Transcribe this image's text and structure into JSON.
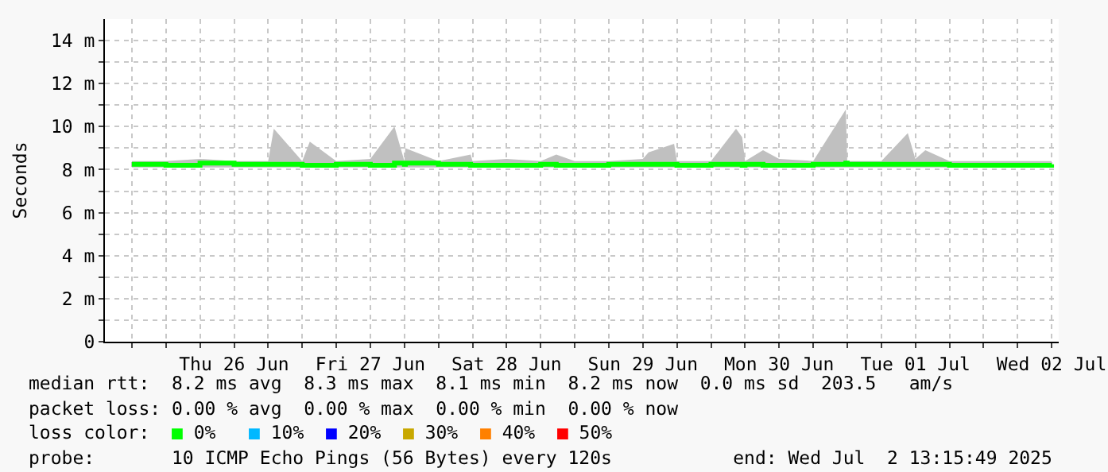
{
  "chart_data": {
    "type": "line",
    "ylabel": "Seconds",
    "x": [
      "2025-06-25T18:00",
      "2025-06-26T00:00",
      "2025-06-26T06:00",
      "2025-06-26T12:00",
      "2025-06-26T18:00",
      "2025-06-26T19:00",
      "2025-06-27T00:00",
      "2025-06-27T01:20",
      "2025-06-27T06:00",
      "2025-06-27T12:00",
      "2025-06-27T16:15",
      "2025-06-27T18:00",
      "2025-06-27T18:10",
      "2025-06-28T00:00",
      "2025-06-28T05:40",
      "2025-06-28T06:00",
      "2025-06-28T12:00",
      "2025-06-28T18:00",
      "2025-06-28T20:45",
      "2025-06-29T00:00",
      "2025-06-29T06:00",
      "2025-06-29T12:00",
      "2025-06-29T13:00",
      "2025-06-29T17:30",
      "2025-06-29T18:00",
      "2025-06-30T00:00",
      "2025-06-30T04:25",
      "2025-06-30T05:30",
      "2025-06-30T06:00",
      "2025-06-30T09:10",
      "2025-06-30T12:00",
      "2025-06-30T18:00",
      "2025-06-30T23:45",
      "2025-07-01T00:00",
      "2025-07-01T06:00",
      "2025-07-01T10:40",
      "2025-07-01T12:00",
      "2025-07-01T13:45",
      "2025-07-01T18:00",
      "2025-07-02T00:00",
      "2025-07-02T06:00",
      "2025-07-02T12:00"
    ],
    "series": [
      {
        "color": "#00ff00",
        "values": [
          8.25,
          8.2,
          8.3,
          8.25,
          8.25,
          8.25,
          8.2,
          8.2,
          8.25,
          8.2,
          8.3,
          8.25,
          8.3,
          8.25,
          8.2,
          8.2,
          8.2,
          8.25,
          8.2,
          8.2,
          8.25,
          8.25,
          8.25,
          8.25,
          8.2,
          8.25,
          8.25,
          8.2,
          8.25,
          8.2,
          8.2,
          8.25,
          8.3,
          8.25,
          8.25,
          8.25,
          8.25,
          8.25,
          8.2,
          8.2,
          8.2,
          8.25
        ],
        "lower": [
          8.1,
          8.1,
          8.1,
          8.1,
          8.1,
          8.1,
          8.1,
          8.1,
          8.1,
          8.1,
          8.1,
          8.1,
          8.1,
          8.1,
          8.1,
          8.1,
          8.1,
          8.1,
          8.1,
          8.1,
          8.1,
          8.1,
          8.1,
          8.1,
          8.1,
          8.1,
          8.1,
          8.1,
          8.1,
          8.1,
          8.1,
          8.1,
          8.1,
          8.1,
          8.1,
          8.1,
          8.1,
          8.1,
          8.1,
          8.1,
          8.1,
          8.1
        ],
        "upper": [
          8.4,
          8.4,
          8.5,
          8.4,
          8.4,
          9.9,
          8.4,
          9.3,
          8.4,
          8.5,
          10.0,
          8.4,
          9.0,
          8.4,
          8.7,
          8.4,
          8.5,
          8.4,
          8.7,
          8.4,
          8.4,
          8.5,
          8.8,
          9.2,
          8.4,
          8.4,
          9.9,
          9.5,
          8.4,
          8.9,
          8.5,
          8.4,
          10.8,
          8.4,
          8.4,
          9.7,
          8.5,
          8.9,
          8.4,
          8.4,
          8.4,
          8.4
        ]
      }
    ],
    "xlim": [
      "2025-06-25T13:15",
      "2025-07-02T13:15"
    ],
    "xticks": [
      {
        "value": "2025-06-25T18:00",
        "label": null
      },
      {
        "value": "2025-06-26T00:00",
        "label": null
      },
      {
        "value": "2025-06-26T06:00",
        "label": null
      },
      {
        "value": "2025-06-26T12:00",
        "label": "Thu 26 Jun"
      },
      {
        "value": "2025-06-26T18:00",
        "label": null
      },
      {
        "value": "2025-06-27T00:00",
        "label": null
      },
      {
        "value": "2025-06-27T06:00",
        "label": null
      },
      {
        "value": "2025-06-27T12:00",
        "label": "Fri 27 Jun"
      },
      {
        "value": "2025-06-27T18:00",
        "label": null
      },
      {
        "value": "2025-06-28T00:00",
        "label": null
      },
      {
        "value": "2025-06-28T06:00",
        "label": null
      },
      {
        "value": "2025-06-28T12:00",
        "label": "Sat 28 Jun"
      },
      {
        "value": "2025-06-28T18:00",
        "label": null
      },
      {
        "value": "2025-06-29T00:00",
        "label": null
      },
      {
        "value": "2025-06-29T06:00",
        "label": null
      },
      {
        "value": "2025-06-29T12:00",
        "label": "Sun 29 Jun"
      },
      {
        "value": "2025-06-29T18:00",
        "label": null
      },
      {
        "value": "2025-06-30T00:00",
        "label": null
      },
      {
        "value": "2025-06-30T06:00",
        "label": null
      },
      {
        "value": "2025-06-30T12:00",
        "label": "Mon 30 Jun"
      },
      {
        "value": "2025-06-30T18:00",
        "label": null
      },
      {
        "value": "2025-07-01T00:00",
        "label": null
      },
      {
        "value": "2025-07-01T06:00",
        "label": null
      },
      {
        "value": "2025-07-01T12:00",
        "label": "Tue 01 Jul"
      },
      {
        "value": "2025-07-01T18:00",
        "label": null
      },
      {
        "value": "2025-07-02T00:00",
        "label": null
      },
      {
        "value": "2025-07-02T06:00",
        "label": null
      },
      {
        "value": "2025-07-02T12:00",
        "label": "Wed 02 Jul"
      }
    ],
    "ylim": [
      0,
      15
    ],
    "yticks": [
      {
        "value": 0,
        "label": "0"
      },
      {
        "value": 1,
        "label": null
      },
      {
        "value": 2,
        "label": "2 m"
      },
      {
        "value": 3,
        "label": null
      },
      {
        "value": 4,
        "label": "4 m"
      },
      {
        "value": 5,
        "label": null
      },
      {
        "value": 6,
        "label": "6 m"
      },
      {
        "value": 7,
        "label": null
      },
      {
        "value": 8,
        "label": "8 m"
      },
      {
        "value": 9,
        "label": null
      },
      {
        "value": 10,
        "label": "10 m"
      },
      {
        "value": 11,
        "label": null
      },
      {
        "value": 12,
        "label": "12 m"
      },
      {
        "value": 13,
        "label": null
      },
      {
        "value": 14,
        "label": "14 m"
      }
    ],
    "grid": true,
    "line_style": "solid",
    "annotations": [
      "median rtt:  8.2 ms avg  8.3 ms max  8.1 ms min  8.2 ms now  0.0 ms sd  203.5   am/s",
      "packet loss: 0.00 % avg  0.00 % max  0.00 % min  0.00 % now",
      "loss color:  ■ 0%   ■ 10%  ■ 20%  ■ 30%  ■ 40%  ■ 50%",
      "probe:       10 ICMP Echo Pings (56 Bytes) every 120s           end: Wed Jul  2 13:15:49 2025"
    ]
  }
}
